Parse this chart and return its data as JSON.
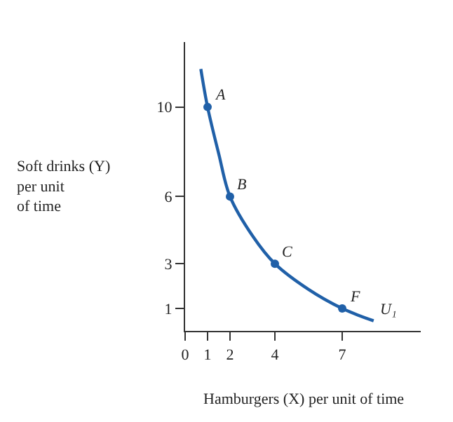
{
  "chart_data": {
    "type": "line",
    "xlabel": "Hamburgers (X) per unit of time",
    "ylabel": "Soft drinks (Y)\nper unit\nof time",
    "xlim": [
      0,
      10.5
    ],
    "ylim": [
      0,
      12.9
    ],
    "xticks": [
      0,
      1,
      2,
      4,
      7
    ],
    "yticks": [
      1,
      3,
      6,
      10
    ],
    "series": [
      {
        "color": "#2060a8",
        "marker": "none",
        "x": [
          0.7,
          1,
          1.5,
          2,
          3,
          4,
          5.5,
          7,
          8.4
        ],
        "values": [
          11.7,
          10,
          7.9,
          6,
          4.25,
          3,
          1.85,
          1,
          0.45
        ]
      },
      {
        "color": "#2060a8",
        "type": "scatter",
        "marker": "circle",
        "x": [
          1,
          2,
          4,
          7
        ],
        "values": [
          10,
          6,
          3,
          1
        ]
      }
    ],
    "annotations": [
      {
        "text": "A",
        "x": 1,
        "y": 10
      },
      {
        "text": "B",
        "x": 2,
        "y": 6
      },
      {
        "text": "C",
        "x": 4,
        "y": 3
      },
      {
        "text": "F",
        "x": 7,
        "y": 1
      },
      {
        "text": "U₁",
        "x": 8.4,
        "y": 0.45
      }
    ]
  }
}
